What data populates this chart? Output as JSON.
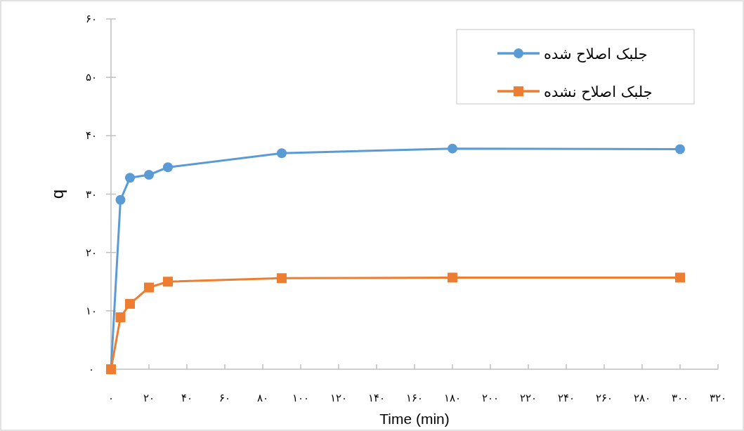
{
  "chart_data": {
    "type": "line",
    "xlabel": "Time (min)",
    "ylabel": "q",
    "x": [
      0,
      5,
      10,
      20,
      30,
      90,
      180,
      300
    ],
    "series": [
      {
        "name": "جلبک اصلاح شده",
        "color": "#5b9bd5",
        "marker": "circle",
        "values": [
          0,
          29,
          32.8,
          33.3,
          34.6,
          37,
          37.8,
          37.7
        ]
      },
      {
        "name": "جلبک اصلاح نشده",
        "color": "#ed7d31",
        "marker": "square",
        "values": [
          0,
          8.9,
          11.2,
          14,
          15,
          15.6,
          15.7,
          15.7
        ]
      }
    ],
    "xlim": [
      0,
      320
    ],
    "ylim": [
      0,
      60
    ],
    "xticks": [
      {
        "value": 0,
        "label": "۰"
      },
      {
        "value": 20,
        "label": "۲۰"
      },
      {
        "value": 40,
        "label": "۴۰"
      },
      {
        "value": 60,
        "label": "۶۰"
      },
      {
        "value": 80,
        "label": "۸۰"
      },
      {
        "value": 100,
        "label": "۱۰۰"
      },
      {
        "value": 120,
        "label": "۱۲۰"
      },
      {
        "value": 140,
        "label": "۱۴۰"
      },
      {
        "value": 160,
        "label": "۱۶۰"
      },
      {
        "value": 180,
        "label": "۱۸۰"
      },
      {
        "value": 200,
        "label": "۲۰۰"
      },
      {
        "value": 220,
        "label": "۲۲۰"
      },
      {
        "value": 240,
        "label": "۲۴۰"
      },
      {
        "value": 260,
        "label": "۲۶۰"
      },
      {
        "value": 280,
        "label": "۲۸۰"
      },
      {
        "value": 300,
        "label": "۳۰۰"
      },
      {
        "value": 320,
        "label": "۳۲۰"
      }
    ],
    "yticks": [
      {
        "value": 0,
        "label": "۰"
      },
      {
        "value": 10,
        "label": "۱۰"
      },
      {
        "value": 20,
        "label": "۲۰"
      },
      {
        "value": 30,
        "label": "۳۰"
      },
      {
        "value": 40,
        "label": "۴۰"
      },
      {
        "value": 50,
        "label": "۵۰"
      },
      {
        "value": 60,
        "label": "۶۰"
      }
    ],
    "grid": false,
    "legend": "top right",
    "line_style": "solid"
  }
}
